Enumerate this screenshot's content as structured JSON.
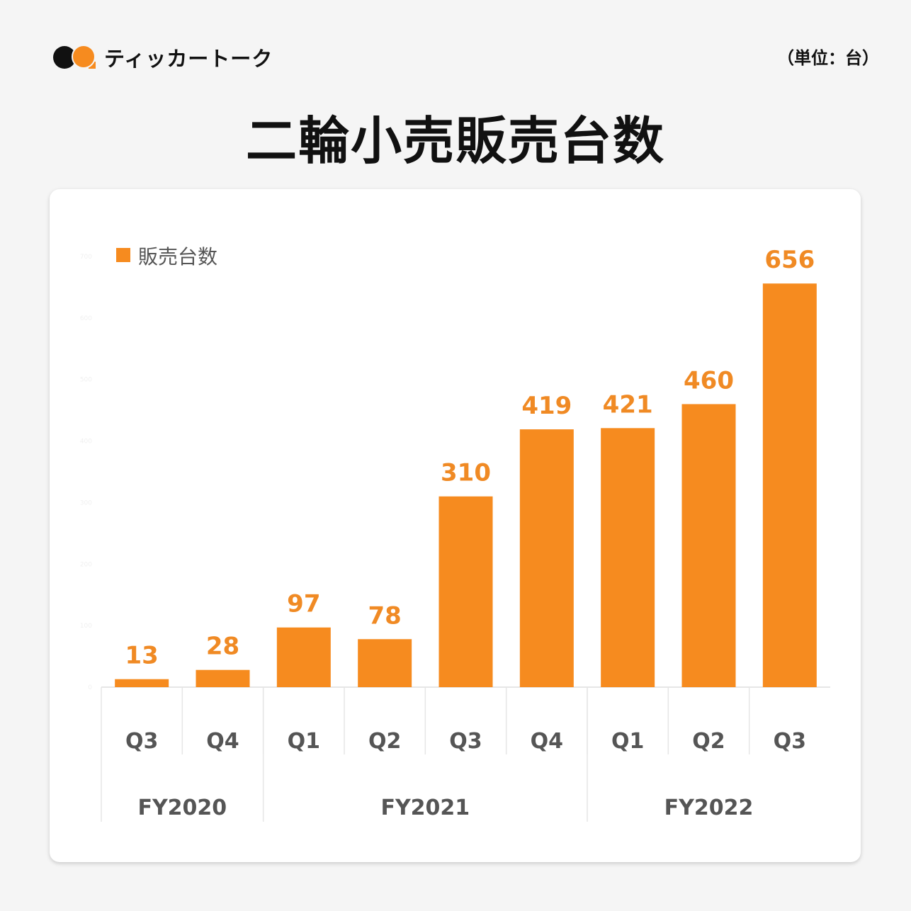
{
  "brand": {
    "name": "ティッカートーク"
  },
  "unit_label": "（単位：台）",
  "colors": {
    "bar": "#f68b1f",
    "label": "#f08a24",
    "axis_text": "#555555",
    "grid": "#e6e6e6"
  },
  "chart_data": {
    "type": "bar",
    "title": "二輪小売販売台数",
    "legend": {
      "label": "販売台数",
      "placement": "top-left"
    },
    "categories": [
      "Q3",
      "Q4",
      "Q1",
      "Q2",
      "Q3",
      "Q4",
      "Q1",
      "Q2",
      "Q3"
    ],
    "groups": [
      {
        "label": "FY2020",
        "count": 2
      },
      {
        "label": "FY2021",
        "count": 4
      },
      {
        "label": "FY2022",
        "count": 3
      }
    ],
    "series": [
      {
        "name": "販売台数",
        "values": [
          13,
          28,
          97,
          78,
          310,
          419,
          421,
          460,
          656
        ]
      }
    ],
    "ylim": [
      0,
      700
    ],
    "yticks": [
      0,
      100,
      200,
      300,
      400,
      500,
      600,
      700
    ],
    "xlabel": "",
    "ylabel": ""
  }
}
